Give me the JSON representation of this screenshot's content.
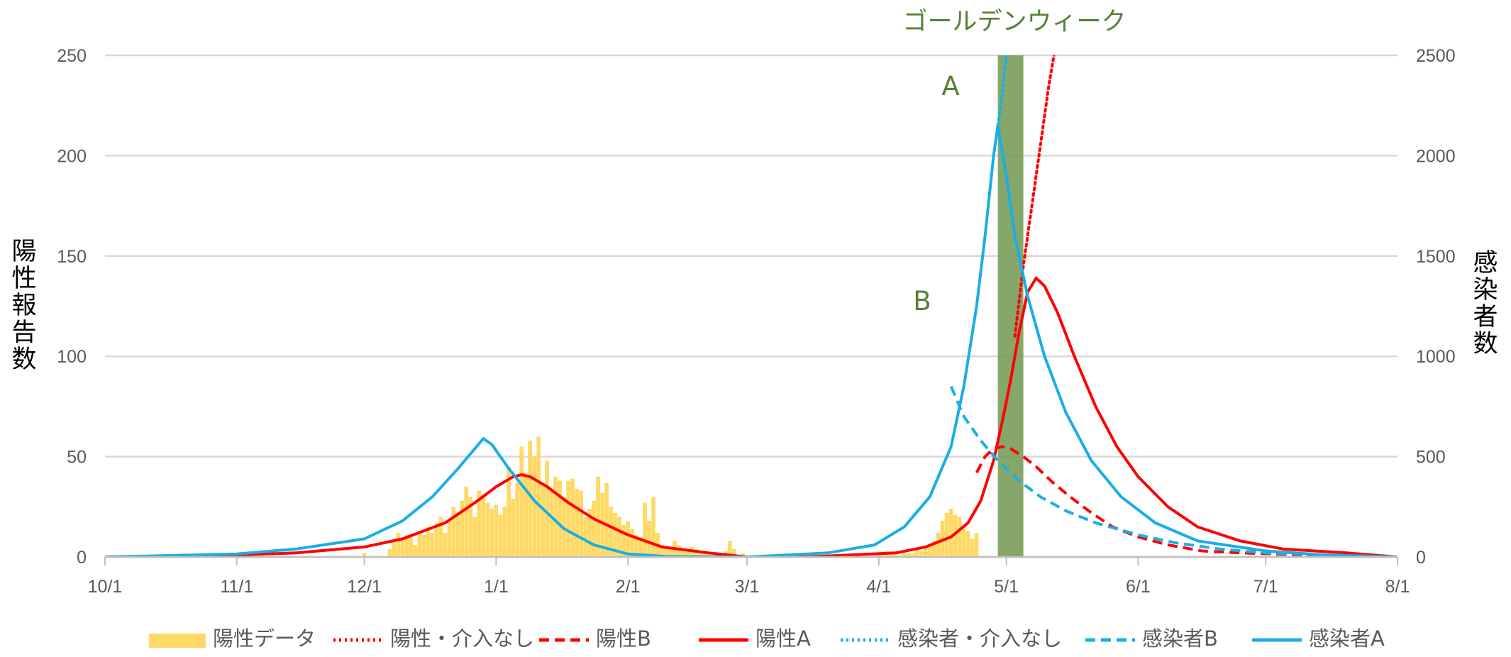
{
  "chart_data": {
    "type": "line",
    "annotation_band": "ゴールデンウィーク",
    "marker_a": "A",
    "marker_b": "B",
    "ylabel_left": "陽性報告数",
    "ylabel_right": "感染者数",
    "xlim": [
      "10/1",
      "8/1"
    ],
    "ylim_left": [
      0,
      250
    ],
    "ylim_right": [
      0,
      2500
    ],
    "x_ticks": [
      "10/1",
      "11/1",
      "12/1",
      "1/1",
      "2/1",
      "3/1",
      "4/1",
      "5/1",
      "6/1",
      "7/1",
      "8/1"
    ],
    "y_ticks_left": [
      0,
      50,
      100,
      150,
      200,
      250
    ],
    "y_ticks_right": [
      0,
      500,
      1000,
      1500,
      2000,
      2500
    ],
    "grid": true,
    "legend_position": "bottom",
    "band_range": [
      "4/29",
      "5/5"
    ],
    "colors": {
      "bars": "#ffd966",
      "red": "#ff0000",
      "blue": "#1aaee5",
      "band": "#709950",
      "grid": "#d9d9d9"
    },
    "bars": {
      "name": "陽性データ",
      "axis": "left",
      "values": [
        [
          "12/1",
          2
        ],
        [
          "12/7",
          4
        ],
        [
          "12/8",
          9
        ],
        [
          "12/9",
          12
        ],
        [
          "12/10",
          8
        ],
        [
          "12/11",
          11
        ],
        [
          "12/12",
          10
        ],
        [
          "12/13",
          6
        ],
        [
          "12/14",
          13
        ],
        [
          "12/15",
          11
        ],
        [
          "12/16",
          15
        ],
        [
          "12/17",
          12
        ],
        [
          "12/18",
          17
        ],
        [
          "12/19",
          20
        ],
        [
          "12/20",
          12
        ],
        [
          "12/21",
          18
        ],
        [
          "12/22",
          25
        ],
        [
          "12/23",
          22
        ],
        [
          "12/24",
          28
        ],
        [
          "12/25",
          35
        ],
        [
          "12/26",
          30
        ],
        [
          "12/27",
          20
        ],
        [
          "12/28",
          33
        ],
        [
          "12/29",
          31
        ],
        [
          "12/30",
          27
        ],
        [
          "12/31",
          24
        ],
        [
          "1/1",
          26
        ],
        [
          "1/2",
          21
        ],
        [
          "1/3",
          25
        ],
        [
          "1/4",
          45
        ],
        [
          "1/5",
          29
        ],
        [
          "1/6",
          37
        ],
        [
          "1/7",
          55
        ],
        [
          "1/8",
          42
        ],
        [
          "1/9",
          58
        ],
        [
          "1/10",
          50
        ],
        [
          "1/11",
          60
        ],
        [
          "1/12",
          36
        ],
        [
          "1/13",
          48
        ],
        [
          "1/14",
          33
        ],
        [
          "1/15",
          40
        ],
        [
          "1/16",
          38
        ],
        [
          "1/17",
          30
        ],
        [
          "1/18",
          38
        ],
        [
          "1/19",
          39
        ],
        [
          "1/20",
          34
        ],
        [
          "1/21",
          33
        ],
        [
          "1/22",
          20
        ],
        [
          "1/23",
          24
        ],
        [
          "1/24",
          28
        ],
        [
          "1/25",
          40
        ],
        [
          "1/26",
          32
        ],
        [
          "1/27",
          37
        ],
        [
          "1/28",
          25
        ],
        [
          "1/29",
          22
        ],
        [
          "1/30",
          20
        ],
        [
          "1/31",
          16
        ],
        [
          "2/1",
          18
        ],
        [
          "2/2",
          14
        ],
        [
          "2/3",
          11
        ],
        [
          "2/4",
          10
        ],
        [
          "2/5",
          27
        ],
        [
          "2/6",
          18
        ],
        [
          "2/7",
          30
        ],
        [
          "2/8",
          12
        ],
        [
          "2/9",
          6
        ],
        [
          "2/10",
          5
        ],
        [
          "2/11",
          4
        ],
        [
          "2/12",
          8
        ],
        [
          "2/13",
          6
        ],
        [
          "2/14",
          4
        ],
        [
          "2/15",
          3
        ],
        [
          "2/16",
          5
        ],
        [
          "2/17",
          4
        ],
        [
          "2/18",
          2
        ],
        [
          "2/19",
          2
        ],
        [
          "2/20",
          2
        ],
        [
          "2/21",
          1
        ],
        [
          "2/22",
          2
        ],
        [
          "2/23",
          1
        ],
        [
          "2/24",
          3
        ],
        [
          "2/25",
          8
        ],
        [
          "2/26",
          4
        ],
        [
          "2/27",
          1
        ],
        [
          "2/28",
          2
        ],
        [
          "4/1",
          2
        ],
        [
          "4/2",
          1
        ],
        [
          "4/3",
          3
        ],
        [
          "4/4",
          2
        ],
        [
          "4/5",
          2
        ],
        [
          "4/6",
          1
        ],
        [
          "4/7",
          3
        ],
        [
          "4/8",
          2
        ],
        [
          "4/9",
          2
        ],
        [
          "4/10",
          4
        ],
        [
          "4/11",
          3
        ],
        [
          "4/12",
          5
        ],
        [
          "4/13",
          6
        ],
        [
          "4/14",
          8
        ],
        [
          "4/15",
          12
        ],
        [
          "4/16",
          18
        ],
        [
          "4/17",
          22
        ],
        [
          "4/18",
          24
        ],
        [
          "4/19",
          21
        ],
        [
          "4/20",
          20
        ],
        [
          "4/21",
          14
        ],
        [
          "4/22",
          13
        ],
        [
          "4/23",
          9
        ],
        [
          "4/24",
          12
        ]
      ]
    },
    "series": [
      {
        "name": "陽性・介入なし",
        "axis": "left",
        "color": "#ff0000",
        "dash": "dotted",
        "points": [
          [
            "5/3",
            110
          ],
          [
            "5/5",
            145
          ],
          [
            "5/7",
            175
          ],
          [
            "5/9",
            205
          ],
          [
            "5/11",
            235
          ],
          [
            "5/13",
            260
          ]
        ]
      },
      {
        "name": "陽性B",
        "axis": "left",
        "color": "#ff0000",
        "dash": "dashed",
        "points": [
          [
            "4/24",
            42
          ],
          [
            "4/26",
            50
          ],
          [
            "4/28",
            54
          ],
          [
            "4/30",
            55
          ],
          [
            "5/2",
            54
          ],
          [
            "5/5",
            50
          ],
          [
            "5/8",
            45
          ],
          [
            "5/12",
            37
          ],
          [
            "5/16",
            30
          ],
          [
            "5/21",
            22
          ],
          [
            "5/26",
            15
          ],
          [
            "6/1",
            10
          ],
          [
            "6/8",
            6
          ],
          [
            "6/16",
            3
          ],
          [
            "6/25",
            2
          ],
          [
            "7/10",
            1
          ],
          [
            "8/1",
            0
          ]
        ]
      },
      {
        "name": "陽性A",
        "axis": "left",
        "color": "#ff0000",
        "dash": "solid",
        "points": [
          [
            "10/1",
            0
          ],
          [
            "11/1",
            1
          ],
          [
            "11/15",
            2
          ],
          [
            "12/1",
            5
          ],
          [
            "12/10",
            9
          ],
          [
            "12/20",
            17
          ],
          [
            "12/27",
            27
          ],
          [
            "1/1",
            35
          ],
          [
            "1/5",
            40
          ],
          [
            "1/7",
            41
          ],
          [
            "1/9",
            40
          ],
          [
            "1/13",
            35
          ],
          [
            "1/18",
            27
          ],
          [
            "1/24",
            19
          ],
          [
            "2/1",
            11
          ],
          [
            "2/9",
            5
          ],
          [
            "2/20",
            2
          ],
          [
            "3/1",
            0
          ],
          [
            "3/15",
            0
          ],
          [
            "3/25",
            1
          ],
          [
            "4/5",
            2
          ],
          [
            "4/12",
            5
          ],
          [
            "4/18",
            10
          ],
          [
            "4/22",
            17
          ],
          [
            "4/25",
            28
          ],
          [
            "4/28",
            48
          ],
          [
            "4/30",
            67
          ],
          [
            "5/2",
            88
          ],
          [
            "5/4",
            112
          ],
          [
            "5/6",
            132
          ],
          [
            "5/8",
            139
          ],
          [
            "5/10",
            135
          ],
          [
            "5/13",
            122
          ],
          [
            "5/17",
            100
          ],
          [
            "5/22",
            75
          ],
          [
            "5/27",
            55
          ],
          [
            "6/1",
            40
          ],
          [
            "6/8",
            25
          ],
          [
            "6/15",
            15
          ],
          [
            "6/25",
            8
          ],
          [
            "7/5",
            4
          ],
          [
            "7/20",
            2
          ],
          [
            "8/1",
            0
          ]
        ]
      },
      {
        "name": "感染者・介入なし",
        "axis": "right",
        "color": "#1aaee5",
        "dash": "dotted",
        "points": [
          [
            "4/29",
            2150
          ],
          [
            "4/30",
            2300
          ],
          [
            "5/1",
            2500
          ]
        ]
      },
      {
        "name": "感染者B",
        "axis": "right",
        "color": "#1aaee5",
        "dash": "dashed",
        "points": [
          [
            "4/18",
            850
          ],
          [
            "4/21",
            700
          ],
          [
            "4/25",
            580
          ],
          [
            "4/29",
            480
          ],
          [
            "5/4",
            380
          ],
          [
            "5/9",
            300
          ],
          [
            "5/15",
            230
          ],
          [
            "5/22",
            170
          ],
          [
            "6/1",
            110
          ],
          [
            "6/10",
            70
          ],
          [
            "6/20",
            40
          ],
          [
            "7/1",
            20
          ],
          [
            "7/15",
            10
          ],
          [
            "8/1",
            0
          ]
        ]
      },
      {
        "name": "感染者A",
        "axis": "right",
        "color": "#1aaee5",
        "dash": "solid",
        "points": [
          [
            "10/1",
            0
          ],
          [
            "11/1",
            15
          ],
          [
            "11/15",
            40
          ],
          [
            "12/1",
            90
          ],
          [
            "12/10",
            180
          ],
          [
            "12/17",
            300
          ],
          [
            "12/23",
            440
          ],
          [
            "12/29",
            590
          ],
          [
            "12/31",
            560
          ],
          [
            "1/4",
            440
          ],
          [
            "1/10",
            280
          ],
          [
            "1/17",
            140
          ],
          [
            "1/24",
            60
          ],
          [
            "2/1",
            15
          ],
          [
            "2/10",
            3
          ],
          [
            "3/1",
            0
          ],
          [
            "3/20",
            20
          ],
          [
            "3/31",
            60
          ],
          [
            "4/7",
            150
          ],
          [
            "4/13",
            300
          ],
          [
            "4/18",
            550
          ],
          [
            "4/21",
            850
          ],
          [
            "4/24",
            1250
          ],
          [
            "4/26",
            1600
          ],
          [
            "4/28",
            2000
          ],
          [
            "4/29",
            2150
          ],
          [
            "5/1",
            1900
          ],
          [
            "5/3",
            1600
          ],
          [
            "5/6",
            1300
          ],
          [
            "5/10",
            1000
          ],
          [
            "5/15",
            720
          ],
          [
            "5/21",
            480
          ],
          [
            "5/28",
            300
          ],
          [
            "6/5",
            170
          ],
          [
            "6/15",
            80
          ],
          [
            "7/1",
            30
          ],
          [
            "7/15",
            10
          ],
          [
            "8/1",
            0
          ]
        ]
      }
    ]
  }
}
